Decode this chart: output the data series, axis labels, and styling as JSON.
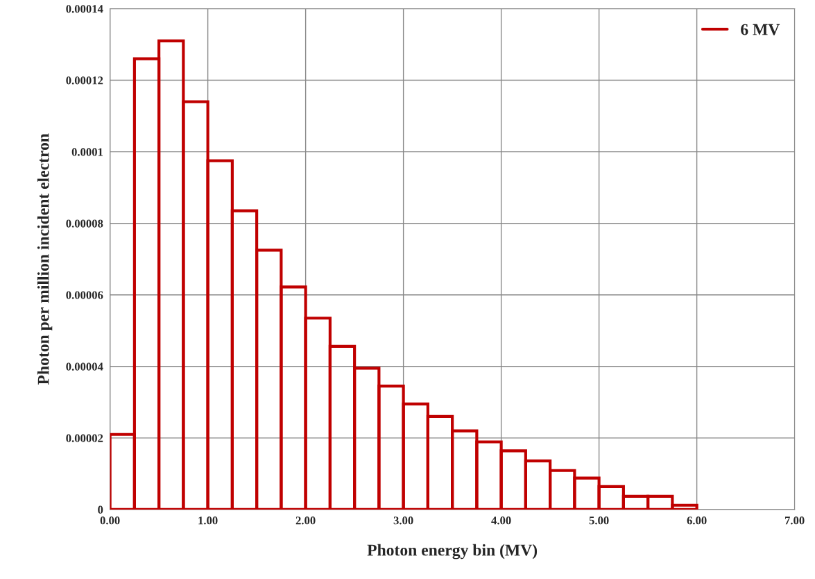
{
  "chart_data": {
    "type": "histogram",
    "xlabel": "Photon energy bin (MV)",
    "ylabel": "Photon per million incident electron",
    "bins": [
      0,
      0.25,
      0.5,
      0.75,
      1,
      1.25,
      1.5,
      1.75,
      2,
      2.25,
      2.5,
      2.75,
      3,
      3.25,
      3.5,
      3.75,
      4,
      4.25,
      4.5,
      4.75,
      5,
      5.25,
      5.5,
      5.75,
      6
    ],
    "series": [
      {
        "name": "6 MV",
        "color": "#c00000",
        "values": [
          2.1e-05,
          0.000126,
          0.000131,
          0.000114,
          9.75e-05,
          8.35e-05,
          7.25e-05,
          6.22e-05,
          5.35e-05,
          4.56e-05,
          3.95e-05,
          3.45e-05,
          2.95e-05,
          2.6e-05,
          2.2e-05,
          1.89e-05,
          1.64e-05,
          1.36e-05,
          1.09e-05,
          8.8e-06,
          6.4e-06,
          3.7e-06,
          3.7e-06,
          1.2e-06
        ]
      }
    ],
    "xlim": [
      0,
      7
    ],
    "xticks": [
      {
        "value": 0,
        "label": "0.00"
      },
      {
        "value": 1,
        "label": "1.00"
      },
      {
        "value": 2,
        "label": "2.00"
      },
      {
        "value": 3,
        "label": "3.00"
      },
      {
        "value": 4,
        "label": "4.00"
      },
      {
        "value": 5,
        "label": "5.00"
      },
      {
        "value": 6,
        "label": "6.00"
      },
      {
        "value": 7,
        "label": "7.00"
      }
    ],
    "ylim": [
      0,
      0.00014
    ],
    "yticks": [
      0,
      {
        "value": 2e-05,
        "label": "0.00002"
      },
      {
        "value": 4e-05,
        "label": "0.00004"
      },
      {
        "value": 6e-05,
        "label": "0.00006"
      },
      {
        "value": 8e-05,
        "label": "0.00008"
      },
      {
        "value": 0.0001,
        "label": "0.0001"
      },
      {
        "value": 0.00012,
        "label": "0.00012"
      },
      {
        "value": 0.00014,
        "label": "0.00014"
      }
    ],
    "grid": true,
    "legend": "top right"
  }
}
